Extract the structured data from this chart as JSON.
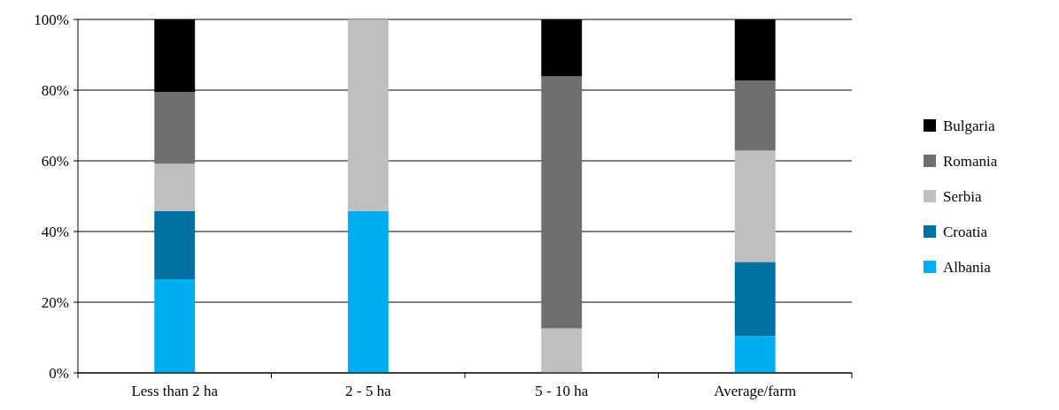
{
  "chart_data": {
    "type": "bar",
    "stacked": true,
    "categories": [
      "Less than 2 ha",
      "2 - 5 ha",
      "5 - 10 ha",
      "Average/farm"
    ],
    "series": [
      {
        "name": "Albania",
        "color": "#00aeef",
        "values": [
          26.5,
          45.8,
          0,
          10.4
        ]
      },
      {
        "name": "Croatia",
        "color": "#0071a0",
        "values": [
          19.3,
          0,
          0,
          21.0
        ]
      },
      {
        "name": "Serbia",
        "color": "#bfbfbf",
        "values": [
          13.4,
          54.2,
          12.6,
          31.5
        ]
      },
      {
        "name": "Romania",
        "color": "#6d6e70",
        "values": [
          20.3,
          0,
          71.3,
          19.8
        ]
      },
      {
        "name": "Bulgaria",
        "color": "#000000",
        "values": [
          20.5,
          0,
          16.1,
          17.3
        ]
      }
    ],
    "ylim": [
      0,
      100
    ],
    "yticks": [
      {
        "value": 0,
        "label": "0%"
      },
      {
        "value": 20,
        "label": "20%"
      },
      {
        "value": 40,
        "label": "40%"
      },
      {
        "value": 60,
        "label": "60%"
      },
      {
        "value": 80,
        "label": "80%"
      },
      {
        "value": 100,
        "label": "100%"
      }
    ],
    "grid": "y",
    "legend": "right"
  }
}
